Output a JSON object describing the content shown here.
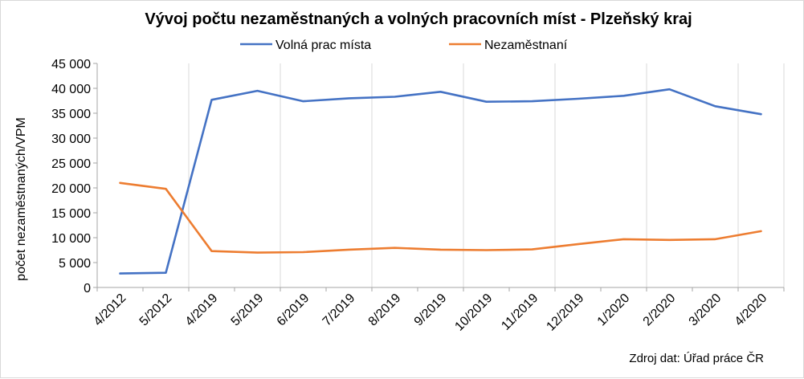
{
  "chart_data": {
    "type": "line",
    "title": "Vývoj počtu nezaměstnaných a volných pracovních míst - Plzeňský kraj",
    "ylabel": "počet nezaměstnaných/VPM",
    "xlabel": "",
    "ylim": [
      0,
      45000
    ],
    "yticks": [
      "0",
      "5 000",
      "10 000",
      "15 000",
      "20 000",
      "25 000",
      "30 000",
      "35 000",
      "40 000",
      "45 000"
    ],
    "ytick_values": [
      0,
      5000,
      10000,
      15000,
      20000,
      25000,
      30000,
      35000,
      40000,
      45000
    ],
    "categories": [
      "4/2012",
      "5/2012",
      "4/2019",
      "5/2019",
      "6/2019",
      "7/2019",
      "8/2019",
      "9/2019",
      "10/2019",
      "11/2019",
      "12/2019",
      "1/2020",
      "2/2020",
      "3/2020",
      "4/2020"
    ],
    "series": [
      {
        "name": "Volná prac místa",
        "color": "#4472c4",
        "values": [
          2800,
          2950,
          37700,
          39500,
          37400,
          38000,
          38300,
          39300,
          37300,
          37400,
          37900,
          38500,
          39800,
          36400,
          34800
        ]
      },
      {
        "name": "Nezaměstnaní",
        "color": "#ed7d31",
        "values": [
          21000,
          19800,
          7300,
          7000,
          7100,
          7600,
          7950,
          7600,
          7500,
          7650,
          8700,
          9700,
          9550,
          9700,
          11300
        ]
      }
    ],
    "legend_position": "top",
    "grid": "vertical",
    "source": "Zdroj dat: Úřad práce ČR"
  }
}
